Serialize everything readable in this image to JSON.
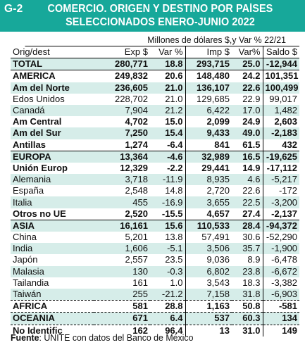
{
  "header": {
    "code": "G-2",
    "title_line1": "COMERCIO. ORIGEN Y DESTINO POR PAÍSES",
    "title_line2": "SELECCIONADOS ENERO-JUNIO 2022"
  },
  "subtitle": "Millones de dólares $,y Var % 22/21",
  "columns": [
    "Orig/dest",
    "Exp $",
    "Var %",
    "Imp $",
    "Var%",
    "Saldo $"
  ],
  "rows": [
    {
      "name": "TOTAL",
      "exp": "280,771",
      "exp_var": "18.8",
      "imp": "293,715",
      "imp_var": "25.0",
      "saldo": "-12,944"
    },
    {
      "name": "AMERICA",
      "exp": "249,832",
      "exp_var": "20.6",
      "imp": "148,480",
      "imp_var": "24.2",
      "saldo": "101,351"
    },
    {
      "name": "Am del Norte",
      "exp": "236,605",
      "exp_var": "21.0",
      "imp": "136,107",
      "imp_var": "22.6",
      "saldo": "100,499"
    },
    {
      "name": "Edos Unidos",
      "exp": "228,702",
      "exp_var": "21.0",
      "imp": "129,685",
      "imp_var": "22.9",
      "saldo": "99,017"
    },
    {
      "name": "Canadá",
      "exp": "7,904",
      "exp_var": "21.2",
      "imp": "6,422",
      "imp_var": "17.0",
      "saldo": "1,482"
    },
    {
      "name": "Am Central",
      "exp": "4,702",
      "exp_var": "15.0",
      "imp": "2,099",
      "imp_var": "24.9",
      "saldo": "2,603"
    },
    {
      "name": "Am del Sur",
      "exp": "7,250",
      "exp_var": "15.4",
      "imp": "9,433",
      "imp_var": "49.0",
      "saldo": "-2,183"
    },
    {
      "name": "Antillas",
      "exp": "1,274",
      "exp_var": "-6.4",
      "imp": "841",
      "imp_var": "61.5",
      "saldo": "432"
    },
    {
      "name": "EUROPA",
      "exp": "13,364",
      "exp_var": "-4.6",
      "imp": "32,989",
      "imp_var": "16.5",
      "saldo": "-19,625"
    },
    {
      "name": "Unión Europ",
      "exp": "12,329",
      "exp_var": "-2.2",
      "imp": "29,441",
      "imp_var": "14.9",
      "saldo": "-17,112"
    },
    {
      "name": "Alemania",
      "exp": "3,718",
      "exp_var": "-11.9",
      "imp": "8,935",
      "imp_var": "4.6",
      "saldo": "-5,217"
    },
    {
      "name": "España",
      "exp": "2,548",
      "exp_var": "14.8",
      "imp": "2,720",
      "imp_var": "22.6",
      "saldo": "-172"
    },
    {
      "name": "Italia",
      "exp": "455",
      "exp_var": "-16.9",
      "imp": "3,655",
      "imp_var": "22.5",
      "saldo": "-3,200"
    },
    {
      "name": "Otros no UE",
      "exp": "2,520",
      "exp_var": "-15.5",
      "imp": "4,657",
      "imp_var": "27.4",
      "saldo": "-2,137"
    },
    {
      "name": "ASIA",
      "exp": "16,161",
      "exp_var": "15.6",
      "imp": "110,533",
      "imp_var": "28.4",
      "saldo": "-94,372"
    },
    {
      "name": "China",
      "exp": "5,201",
      "exp_var": "13.8",
      "imp": "57,491",
      "imp_var": "30.6",
      "saldo": "-52,290"
    },
    {
      "name": "India",
      "exp": "1,606",
      "exp_var": "-5.1",
      "imp": "3,506",
      "imp_var": "35.7",
      "saldo": "-1,900"
    },
    {
      "name": "Japón",
      "exp": "2,557",
      "exp_var": "23.5",
      "imp": "9,036",
      "imp_var": "8.9",
      "saldo": "-6,478"
    },
    {
      "name": "Malasia",
      "exp": "130",
      "exp_var": "-0.3",
      "imp": "6,802",
      "imp_var": "23.8",
      "saldo": "-6,672"
    },
    {
      "name": "Tailandia",
      "exp": "161",
      "exp_var": "1.0",
      "imp": "3,543",
      "imp_var": "18.3",
      "saldo": "-3,382"
    },
    {
      "name": "Taiwán",
      "exp": "255",
      "exp_var": "-21.2",
      "imp": "7,158",
      "imp_var": "31.8",
      "saldo": "-6,903"
    },
    {
      "name": "AFRICA",
      "exp": "581",
      "exp_var": "28.8",
      "imp": "1,163",
      "imp_var": "50.8",
      "saldo": "-581"
    },
    {
      "name": "OCEANIA",
      "exp": "671",
      "exp_var": "6.4",
      "imp": "537",
      "imp_var": "60.3",
      "saldo": "134"
    },
    {
      "name": "No Identific",
      "exp": "162",
      "exp_var": "96.4",
      "imp": "13",
      "imp_var": "31.0",
      "saldo": "149"
    }
  ],
  "source": {
    "label": "Fuente",
    "text": ": UNITE con datos del Banco de México"
  },
  "colors": {
    "header_bg": "#17a89a",
    "row_shade": "#d6ede9"
  }
}
